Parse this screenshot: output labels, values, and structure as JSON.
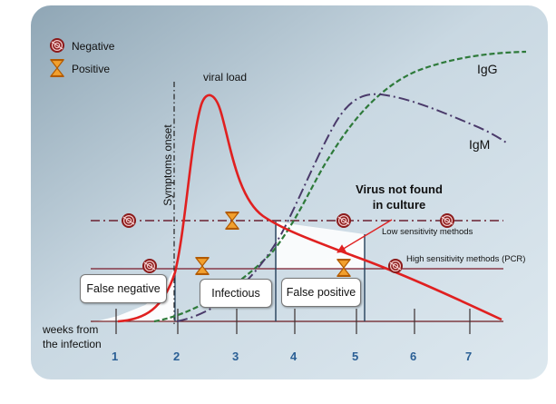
{
  "legend": {
    "negative": "Negative",
    "positive": "Positive"
  },
  "labels": {
    "viral_load": "viral load",
    "igg": "IgG",
    "igm": "IgM",
    "symptoms_onset": "Symptoms onset",
    "virus_not_found_line1": "Virus not found",
    "virus_not_found_line2": "in culture",
    "low_sensitivity": "Low sensitivity methods",
    "high_sensitivity": "High sensitivity methods (PCR)",
    "false_negative": "False negative",
    "infectious": "Infectious",
    "false_positive": "False positive",
    "weeks_line1": "weeks from",
    "weeks_line2": "the infection"
  },
  "x_ticks": [
    "1",
    "2",
    "3",
    "4",
    "5",
    "6",
    "7"
  ],
  "colors": {
    "viral_load": "#e02020",
    "igg": "#2e7a3a",
    "igm": "#4a3a6a",
    "negative_marker": "#8b1a1a",
    "positive_marker": "#e07a10",
    "tick_numbers": "#2a5f95"
  },
  "icons": {
    "negative": "no-entry-swirl-icon",
    "positive": "hourglass-icon"
  }
}
